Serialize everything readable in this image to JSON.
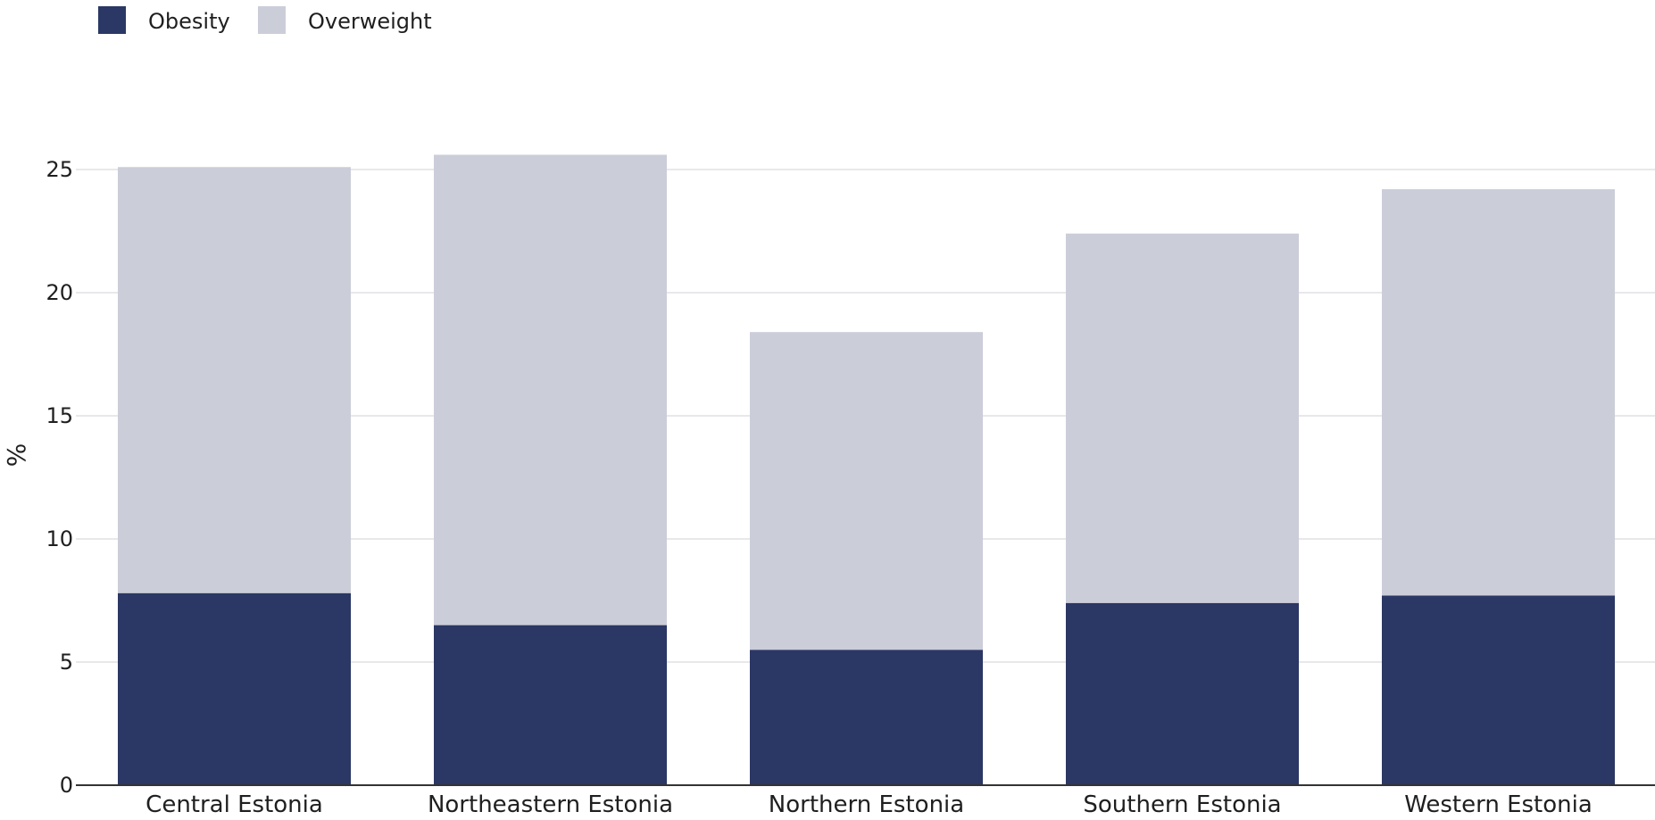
{
  "chart_data": {
    "type": "bar",
    "stacked": true,
    "title": "",
    "xlabel": "",
    "ylabel": "%",
    "categories": [
      "Central Estonia",
      "Northeastern Estonia",
      "Northern Estonia",
      "Southern Estonia",
      "Western Estonia"
    ],
    "series": [
      {
        "name": "Obesity",
        "color": "#2b3764",
        "values": [
          7.8,
          6.5,
          5.5,
          7.4,
          7.7
        ]
      },
      {
        "name": "Overweight",
        "color": "#cbcdd9",
        "values": [
          17.3,
          19.1,
          12.9,
          15.0,
          16.5
        ]
      }
    ],
    "ylim": [
      0,
      25
    ],
    "yticks": [
      0,
      5,
      10,
      15,
      20,
      25
    ],
    "grid": true,
    "legend": "top-left"
  }
}
